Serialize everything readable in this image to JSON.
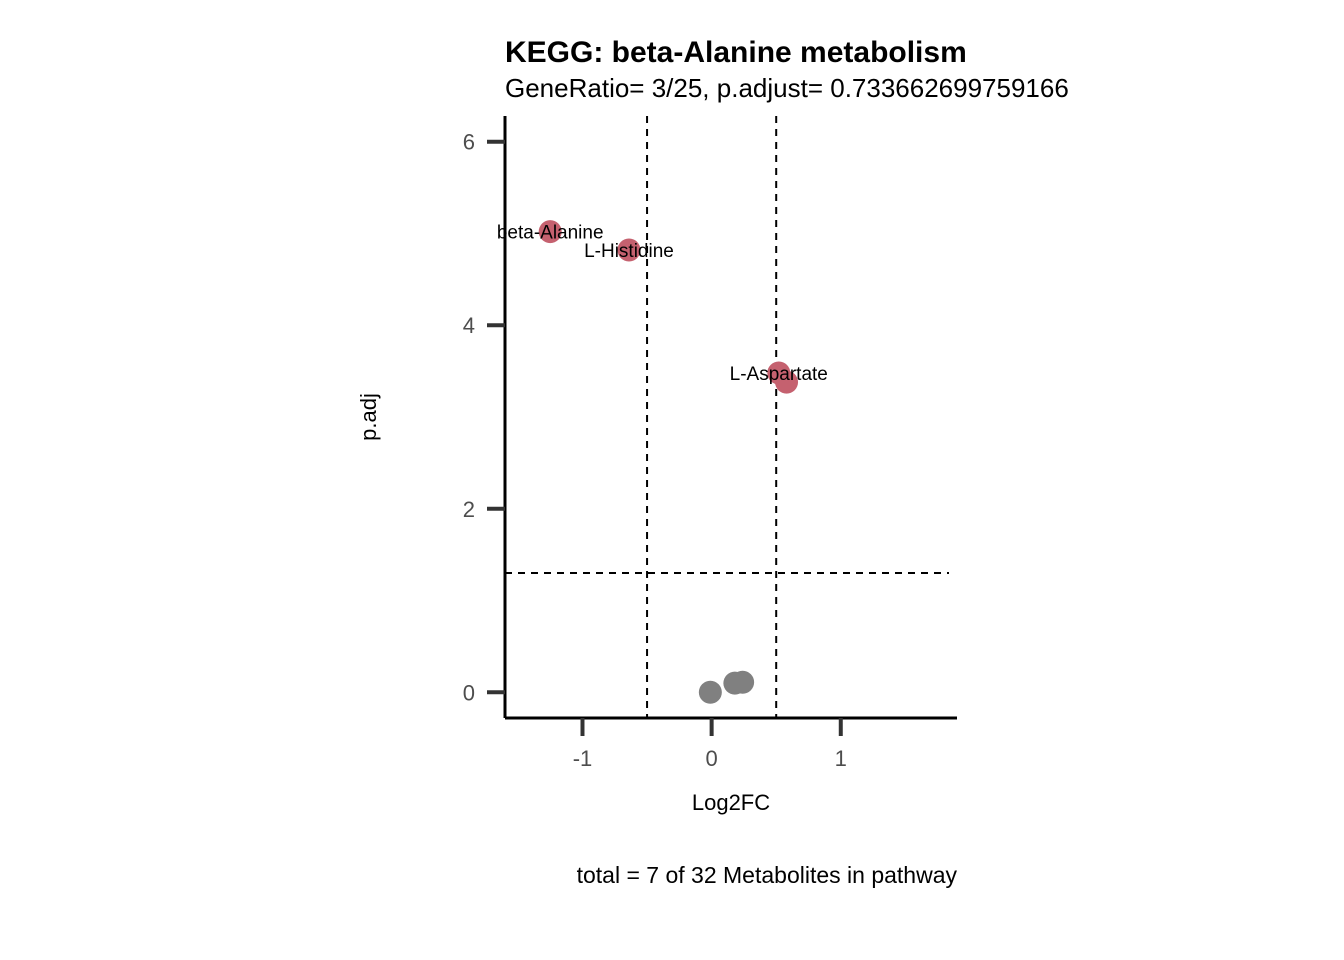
{
  "chart_data": {
    "type": "scatter",
    "title": "KEGG: beta-Alanine metabolism",
    "subtitle": "GeneRatio= 3/25, p.adjust= 0.733662699759166",
    "xlabel": "Log2FC",
    "ylabel": "p.adj",
    "caption": "total = 7 of 32 Metabolites in pathway",
    "xlim": [
      -1.6,
      1.9
    ],
    "ylim": [
      -0.28,
      6.28
    ],
    "x_ticks": [
      -1,
      0,
      1
    ],
    "x_tick_labels": [
      "-1",
      "0",
      "1"
    ],
    "y_ticks": [
      0,
      2,
      4,
      6
    ],
    "y_tick_labels": [
      "0",
      "2",
      "4",
      "6"
    ],
    "reference_lines": {
      "vertical": [
        -0.5,
        0.5
      ],
      "horizontal": [
        1.3
      ]
    },
    "colors": {
      "significant": "#c5616f",
      "not_significant": "#808080",
      "axis": "#000000",
      "tick": "#333333"
    },
    "points": [
      {
        "x": -1.25,
        "y": 5.02,
        "group": "significant",
        "label": "beta-Alanine"
      },
      {
        "x": -0.64,
        "y": 4.82,
        "group": "significant",
        "label": "L-Histidine"
      },
      {
        "x": 0.52,
        "y": 3.48,
        "group": "significant",
        "label": "L-Aspartate"
      },
      {
        "x": 0.58,
        "y": 3.38,
        "group": "significant",
        "label": ""
      },
      {
        "x": -0.01,
        "y": 0.0,
        "group": "not_significant",
        "label": ""
      },
      {
        "x": 0.18,
        "y": 0.1,
        "group": "not_significant",
        "label": ""
      },
      {
        "x": 0.24,
        "y": 0.11,
        "group": "not_significant",
        "label": ""
      }
    ]
  }
}
